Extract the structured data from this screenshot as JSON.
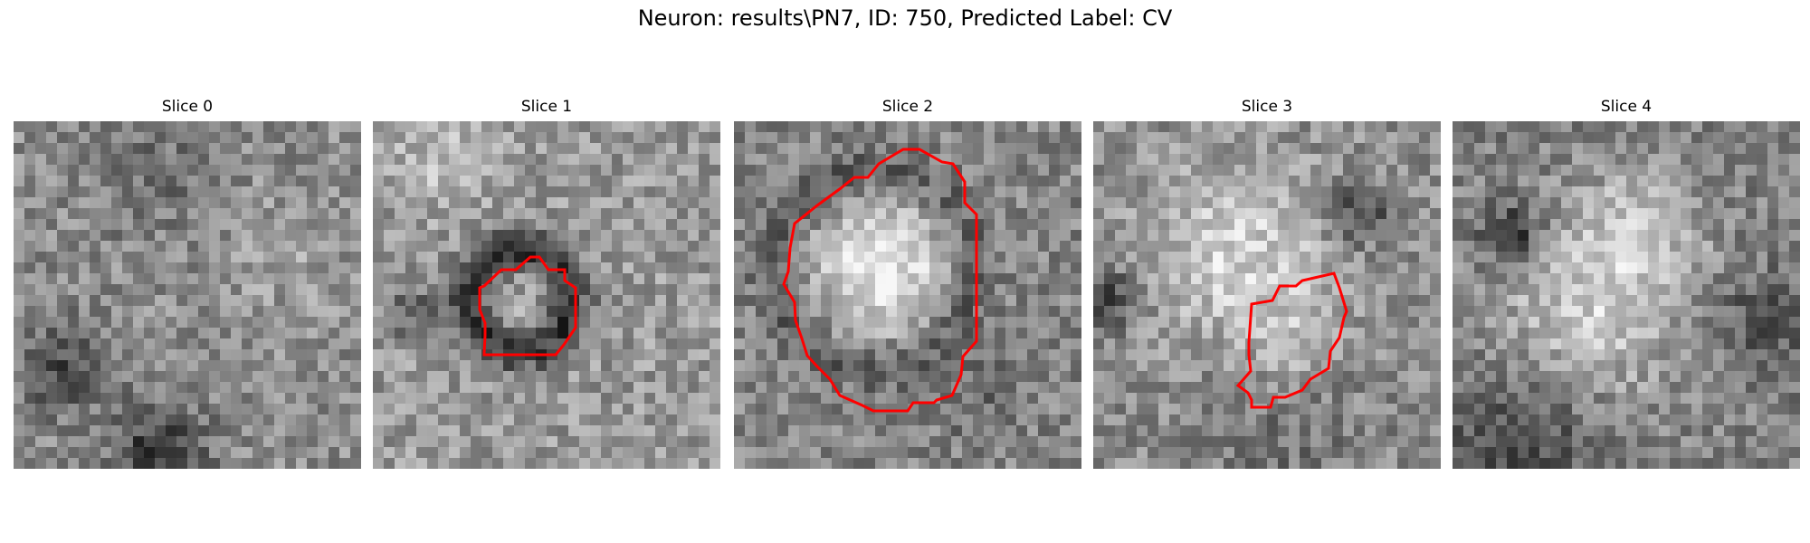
{
  "figure": {
    "title": "Neuron: results\\PN7, ID: 750, Predicted Label: CV"
  },
  "panels": [
    {
      "title": "Slice 0"
    },
    {
      "title": "Slice 1"
    },
    {
      "title": "Slice 2"
    },
    {
      "title": "Slice 3"
    },
    {
      "title": "Slice 4"
    }
  ],
  "colors": {
    "contour": "#ff0000",
    "background": "#ffffff"
  }
}
